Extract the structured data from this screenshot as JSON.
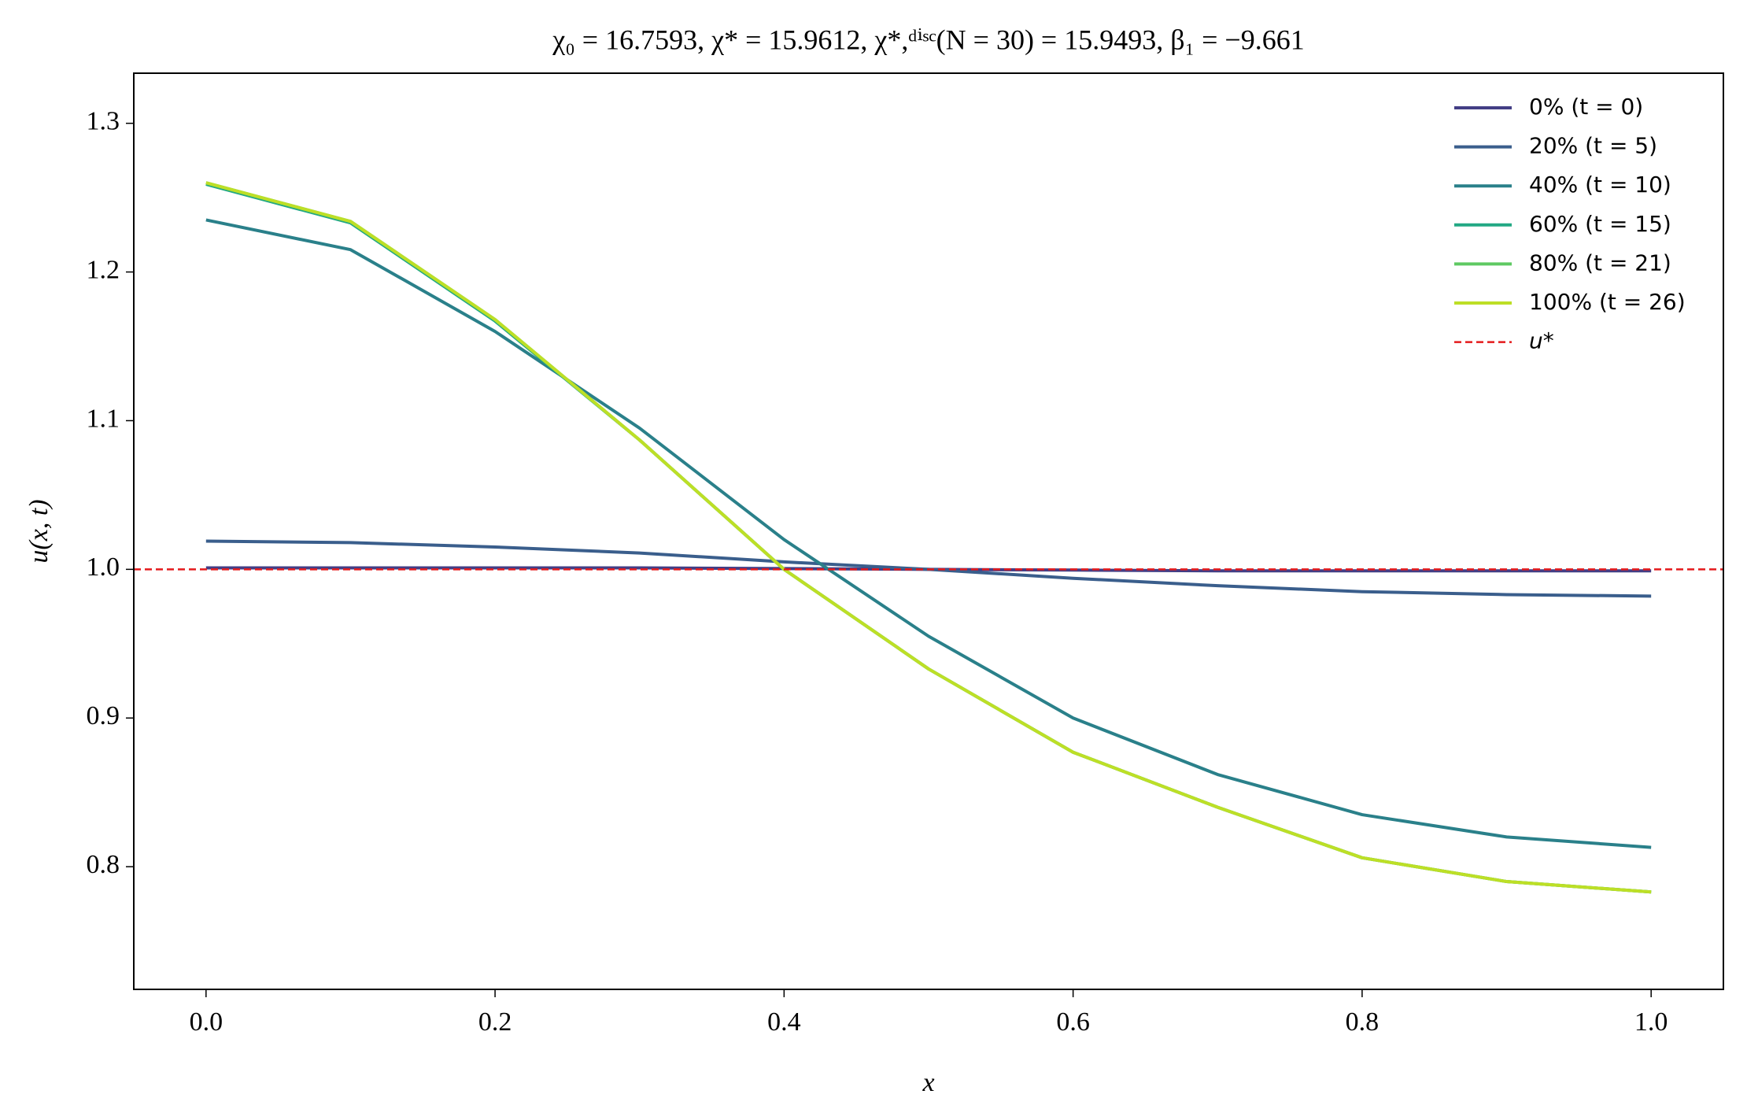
{
  "chart_data": {
    "type": "line",
    "title": "χ₀ = 16.7593,  χ* = 15.9612,  χ*,ᵈⁱˢᶜ(N = 30) = 15.9493,  β₁ = −9.661",
    "x_label": "x",
    "y_label": "u(x, t)",
    "x": [
      0,
      0.1,
      0.2,
      0.3,
      0.4,
      0.5,
      0.6,
      0.7,
      0.8,
      0.9,
      1
    ],
    "series": [
      {
        "name": "0% (t = 0)",
        "color": "#433e85",
        "values": [
          1.001,
          1.001,
          1.001,
          1.001,
          1.0005,
          1.0,
          0.9995,
          0.999,
          0.999,
          0.999,
          0.999
        ]
      },
      {
        "name": "20% (t = 5)",
        "color": "#3a5e8c",
        "values": [
          1.019,
          1.018,
          1.015,
          1.011,
          1.005,
          1.0,
          0.994,
          0.989,
          0.985,
          0.983,
          0.982
        ]
      },
      {
        "name": "40% (t = 10)",
        "color": "#2a808a",
        "values": [
          1.235,
          1.215,
          1.16,
          1.095,
          1.02,
          0.955,
          0.9,
          0.862,
          0.835,
          0.82,
          0.813
        ]
      },
      {
        "name": "60% (t = 15)",
        "color": "#22a884",
        "values": [
          1.259,
          1.233,
          1.167,
          1.087,
          1.0,
          0.933,
          0.877,
          0.84,
          0.806,
          0.79,
          0.783
        ]
      },
      {
        "name": "80% (t = 21)",
        "color": "#5ec962",
        "values": [
          1.26,
          1.234,
          1.168,
          1.087,
          1.0,
          0.933,
          0.877,
          0.84,
          0.806,
          0.79,
          0.783
        ]
      },
      {
        "name": "100% (t = 26)",
        "color": "#bddf26",
        "values": [
          1.26,
          1.234,
          1.168,
          1.087,
          1.0,
          0.933,
          0.877,
          0.84,
          0.806,
          0.79,
          0.783
        ]
      }
    ],
    "reference_line": {
      "name": "u*",
      "value": 1.0,
      "color": "#e41a1c",
      "dashed": true
    },
    "xlim": [
      -0.05,
      1.05
    ],
    "ylim": [
      0.7175,
      1.3337
    ],
    "xticks": [
      {
        "value": 0,
        "label": "0.0"
      },
      0.2,
      0.4,
      0.6,
      0.8,
      {
        "value": 1,
        "label": "1.0"
      }
    ],
    "yticks": [
      0.8,
      0.9,
      {
        "value": 1,
        "label": "1.0"
      },
      1.1,
      1.2,
      1.3
    ],
    "grid": false,
    "legend_position": "upper-right"
  }
}
